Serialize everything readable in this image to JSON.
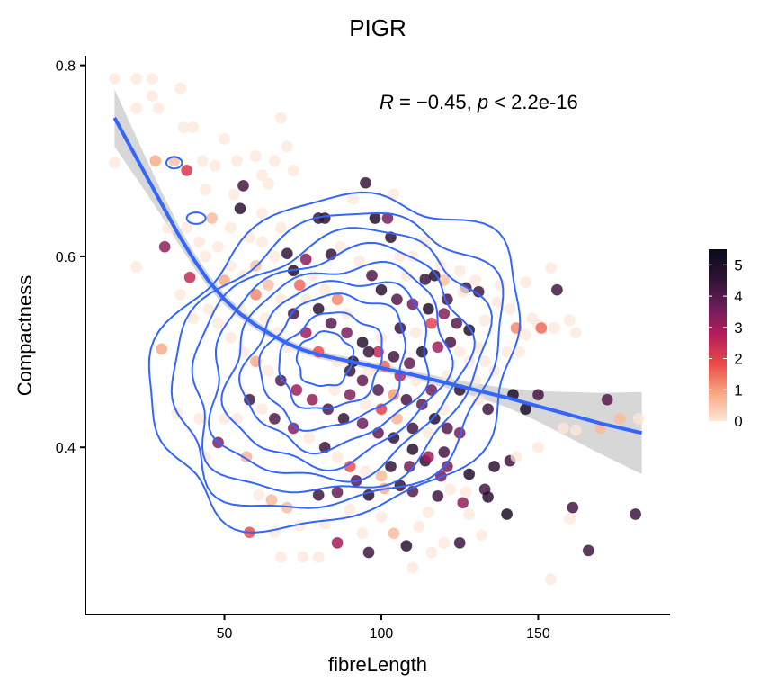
{
  "chart_data": {
    "type": "scatter",
    "title": "PIGR",
    "xlabel": "fibreLength",
    "ylabel": "Compactness",
    "xlim": [
      6,
      192
    ],
    "ylim": [
      0.225,
      0.81
    ],
    "x_ticks": [
      50,
      100,
      150
    ],
    "y_ticks": [
      0.4,
      0.6,
      0.8
    ],
    "x_tick_labels": [
      "50",
      "100",
      "150"
    ],
    "y_tick_labels": [
      "0.4",
      "0.6",
      "0.8"
    ],
    "grid": false,
    "annotation": {
      "text_R": "R",
      "text_eq": " = −0.45, ",
      "text_p": "p",
      "text_rest": " < 2.2e-16"
    },
    "colorbar": {
      "placement": "right",
      "min": 0,
      "max": 5.5,
      "ticks": [
        0,
        1,
        2,
        3,
        4,
        5
      ],
      "tick_labels": [
        "0",
        "1",
        "2",
        "3",
        "4",
        "5"
      ],
      "colors": [
        "#fde7d9",
        "#f7a57e",
        "#ea4a4a",
        "#b41f5b",
        "#6a1d5a",
        "#2c1433",
        "#0a0a1a"
      ]
    },
    "smooth": {
      "color": "#3366ff",
      "band_color": "#d3d3d3",
      "x": [
        15,
        20,
        25,
        30,
        35,
        40,
        45,
        50,
        55,
        60,
        65,
        70,
        75,
        80,
        90,
        100,
        110,
        120,
        130,
        140,
        150,
        160,
        170,
        183
      ],
      "y": [
        0.745,
        0.715,
        0.685,
        0.655,
        0.625,
        0.598,
        0.574,
        0.555,
        0.54,
        0.528,
        0.518,
        0.509,
        0.502,
        0.497,
        0.49,
        0.483,
        0.476,
        0.468,
        0.46,
        0.452,
        0.443,
        0.434,
        0.425,
        0.415
      ],
      "band_halfwidth": [
        0.03,
        0.024,
        0.018,
        0.013,
        0.01,
        0.008,
        0.007,
        0.006,
        0.005,
        0.005,
        0.004,
        0.004,
        0.004,
        0.004,
        0.004,
        0.004,
        0.004,
        0.005,
        0.007,
        0.01,
        0.016,
        0.024,
        0.032,
        0.043
      ]
    },
    "contours": {
      "color": "#3366ff",
      "levels": [
        {
          "cx": 82,
          "cy": 0.492,
          "rx": 9,
          "ry": 0.028
        },
        {
          "cx": 84,
          "cy": 0.49,
          "rx": 17,
          "ry": 0.048
        },
        {
          "cx": 85,
          "cy": 0.49,
          "rx": 24,
          "ry": 0.066
        },
        {
          "cx": 86,
          "cy": 0.488,
          "rx": 31,
          "ry": 0.082
        },
        {
          "cx": 86,
          "cy": 0.487,
          "rx": 37,
          "ry": 0.097
        },
        {
          "cx": 86,
          "cy": 0.487,
          "rx": 43,
          "ry": 0.112
        },
        {
          "cx": 86,
          "cy": 0.487,
          "rx": 49,
          "ry": 0.127
        },
        {
          "cx": 86,
          "cy": 0.488,
          "rx": 55,
          "ry": 0.143
        },
        {
          "cx": 86,
          "cy": 0.49,
          "rx": 62,
          "ry": 0.16
        }
      ],
      "tilt": -0.55,
      "small_loops": [
        {
          "cx": 34,
          "cy": 0.698,
          "rx": 2.5,
          "ry": 0.006
        },
        {
          "cx": 41,
          "cy": 0.64,
          "rx": 3,
          "ry": 0.006
        }
      ]
    },
    "points": [
      [
        15,
        0.786,
        0
      ],
      [
        22,
        0.786,
        0
      ],
      [
        27,
        0.786,
        0
      ],
      [
        15,
        0.698,
        0
      ],
      [
        22,
        0.755,
        0
      ],
      [
        27,
        0.768,
        0
      ],
      [
        29,
        0.755,
        0
      ],
      [
        36,
        0.776,
        0
      ],
      [
        37,
        0.735,
        0
      ],
      [
        40,
        0.735,
        0
      ],
      [
        22,
        0.589,
        0
      ],
      [
        28,
        0.7,
        0.8
      ],
      [
        34,
        0.7,
        0.5
      ],
      [
        38,
        0.69,
        2.2
      ],
      [
        43,
        0.7,
        0
      ],
      [
        50,
        0.723,
        0
      ],
      [
        47,
        0.695,
        0
      ],
      [
        54,
        0.7,
        0
      ],
      [
        53,
        0.665,
        0
      ],
      [
        60,
        0.705,
        0
      ],
      [
        62,
        0.685,
        0
      ],
      [
        66,
        0.7,
        0
      ],
      [
        68,
        0.745,
        0
      ],
      [
        70,
        0.715,
        0
      ],
      [
        72,
        0.69,
        0
      ],
      [
        56,
        0.674,
        4.2
      ],
      [
        55,
        0.65,
        4.6
      ],
      [
        64,
        0.676,
        0
      ],
      [
        44,
        0.67,
        0
      ],
      [
        38,
        0.63,
        0
      ],
      [
        32,
        0.63,
        0
      ],
      [
        31,
        0.61,
        3.2
      ],
      [
        44,
        0.6,
        0
      ],
      [
        48,
        0.61,
        0
      ],
      [
        50,
        0.575,
        0.8
      ],
      [
        39,
        0.578,
        2.5
      ],
      [
        36,
        0.56,
        0
      ],
      [
        40,
        0.535,
        0
      ],
      [
        30,
        0.503,
        0.8
      ],
      [
        35,
        0.436,
        0
      ],
      [
        42,
        0.43,
        0
      ],
      [
        50,
        0.43,
        0
      ],
      [
        54,
        0.43,
        0
      ],
      [
        44,
        0.39,
        0
      ],
      [
        48,
        0.405,
        3.3
      ],
      [
        57,
        0.39,
        0.7
      ],
      [
        61,
        0.35,
        0
      ],
      [
        65,
        0.345,
        0.6
      ],
      [
        70,
        0.337,
        0.6
      ],
      [
        58,
        0.311,
        1.8
      ],
      [
        66,
        0.311,
        0
      ],
      [
        74,
        0.318,
        0
      ],
      [
        75,
        0.285,
        0
      ],
      [
        68,
        0.285,
        0
      ],
      [
        80,
        0.285,
        0
      ],
      [
        82,
        0.32,
        0
      ],
      [
        86,
        0.3,
        3
      ],
      [
        90,
        0.335,
        0
      ],
      [
        94,
        0.31,
        0
      ],
      [
        96,
        0.29,
        4.3
      ],
      [
        100,
        0.327,
        0
      ],
      [
        104,
        0.31,
        0.6
      ],
      [
        108,
        0.297,
        4.6
      ],
      [
        112,
        0.317,
        0
      ],
      [
        115,
        0.332,
        0
      ],
      [
        110,
        0.274,
        0
      ],
      [
        116,
        0.29,
        0
      ],
      [
        120,
        0.3,
        0
      ],
      [
        125,
        0.3,
        4.3
      ],
      [
        132,
        0.308,
        0
      ],
      [
        140,
        0.33,
        5
      ],
      [
        154,
        0.262,
        0
      ],
      [
        161,
        0.337,
        4.2
      ],
      [
        160,
        0.325,
        0
      ],
      [
        166,
        0.292,
        4.3
      ],
      [
        181,
        0.33,
        4.3
      ],
      [
        133,
        0.356,
        4.2
      ],
      [
        134,
        0.348,
        4.6
      ],
      [
        128,
        0.33,
        0
      ],
      [
        126,
        0.342,
        3.2
      ],
      [
        127,
        0.353,
        0
      ],
      [
        118,
        0.349,
        4.3
      ],
      [
        122,
        0.356,
        0
      ],
      [
        119,
        0.37,
        3.5
      ],
      [
        110,
        0.354,
        4
      ],
      [
        106,
        0.36,
        4.5
      ],
      [
        101,
        0.357,
        0.8
      ],
      [
        96,
        0.35,
        4.7
      ],
      [
        92,
        0.365,
        4
      ],
      [
        86,
        0.353,
        3.8
      ],
      [
        80,
        0.35,
        4.3
      ],
      [
        103,
        0.38,
        4.5
      ],
      [
        109,
        0.38,
        3.6
      ],
      [
        114,
        0.386,
        4.6
      ],
      [
        121,
        0.38,
        3.5
      ],
      [
        128,
        0.372,
        4.8
      ],
      [
        136,
        0.38,
        4.6
      ],
      [
        141,
        0.386,
        4.3
      ],
      [
        143,
        0.39,
        0
      ],
      [
        150,
        0.4,
        0
      ],
      [
        158,
        0.42,
        0
      ],
      [
        162,
        0.418,
        0
      ],
      [
        170,
        0.42,
        0.6
      ],
      [
        176,
        0.43,
        0.6
      ],
      [
        182,
        0.43,
        0
      ],
      [
        172,
        0.45,
        4
      ],
      [
        146,
        0.44,
        5
      ],
      [
        142,
        0.455,
        5
      ],
      [
        131,
        0.45,
        0
      ],
      [
        134,
        0.44,
        4.3
      ],
      [
        150,
        0.455,
        4.2
      ],
      [
        133,
        0.49,
        0
      ],
      [
        140,
        0.5,
        0
      ],
      [
        144,
        0.5,
        0
      ],
      [
        146,
        0.518,
        0
      ],
      [
        150,
        0.528,
        0
      ],
      [
        151,
        0.525,
        1.5
      ],
      [
        155,
        0.525,
        0
      ],
      [
        160,
        0.533,
        0
      ],
      [
        162,
        0.52,
        0
      ],
      [
        148,
        0.535,
        0
      ],
      [
        143,
        0.525,
        1.2
      ],
      [
        133,
        0.533,
        0
      ],
      [
        138,
        0.57,
        0
      ],
      [
        146,
        0.573,
        0
      ],
      [
        154,
        0.588,
        0
      ],
      [
        156,
        0.565,
        4.2
      ],
      [
        131,
        0.563,
        4.3
      ],
      [
        127,
        0.567,
        4.3
      ],
      [
        120,
        0.575,
        0.5
      ],
      [
        117,
        0.58,
        4.7
      ],
      [
        114,
        0.576,
        4.4
      ],
      [
        108,
        0.58,
        0
      ],
      [
        106,
        0.6,
        0
      ],
      [
        103,
        0.62,
        4.6
      ],
      [
        98,
        0.64,
        4.8
      ],
      [
        95,
        0.677,
        4.4
      ],
      [
        104,
        0.665,
        0
      ],
      [
        91,
        0.66,
        0
      ],
      [
        82,
        0.64,
        4.6
      ],
      [
        80,
        0.64,
        4.5
      ],
      [
        84,
        0.602,
        4.4
      ],
      [
        87,
        0.61,
        0
      ],
      [
        93,
        0.595,
        0
      ],
      [
        97,
        0.58,
        4
      ],
      [
        100,
        0.565,
        4.6
      ],
      [
        105,
        0.555,
        4
      ],
      [
        110,
        0.55,
        3.5
      ],
      [
        115,
        0.545,
        4.8
      ],
      [
        120,
        0.54,
        3.4
      ],
      [
        124,
        0.53,
        4
      ],
      [
        128,
        0.523,
        4.8
      ],
      [
        122,
        0.51,
        4.2
      ],
      [
        118,
        0.505,
        3
      ],
      [
        113,
        0.5,
        4.8
      ],
      [
        109,
        0.488,
        3.8
      ],
      [
        104,
        0.495,
        4.2
      ],
      [
        99,
        0.5,
        2.5
      ],
      [
        94,
        0.51,
        4.7
      ],
      [
        89,
        0.52,
        3.5
      ],
      [
        84,
        0.53,
        4
      ],
      [
        80,
        0.545,
        4.6
      ],
      [
        76,
        0.555,
        0
      ],
      [
        74,
        0.57,
        1.5
      ],
      [
        72,
        0.585,
        4.8
      ],
      [
        76,
        0.597,
        3.3
      ],
      [
        70,
        0.603,
        4.5
      ],
      [
        66,
        0.6,
        0
      ],
      [
        62,
        0.615,
        0
      ],
      [
        60,
        0.59,
        0.5
      ],
      [
        64,
        0.57,
        0.5
      ],
      [
        68,
        0.555,
        0
      ],
      [
        72,
        0.54,
        4.2
      ],
      [
        76,
        0.52,
        3
      ],
      [
        80,
        0.5,
        1.8
      ],
      [
        86,
        0.49,
        0
      ],
      [
        90,
        0.48,
        4.5
      ],
      [
        94,
        0.47,
        3.8
      ],
      [
        99,
        0.46,
        4
      ],
      [
        104,
        0.455,
        1
      ],
      [
        108,
        0.45,
        4.2
      ],
      [
        113,
        0.445,
        3.8
      ],
      [
        117,
        0.43,
        4.8
      ],
      [
        121,
        0.42,
        4
      ],
      [
        125,
        0.415,
        3.5
      ],
      [
        120,
        0.395,
        4.2
      ],
      [
        115,
        0.39,
        3
      ],
      [
        110,
        0.398,
        4.7
      ],
      [
        104,
        0.41,
        4.6
      ],
      [
        99,
        0.415,
        3.9
      ],
      [
        94,
        0.425,
        3.6
      ],
      [
        88,
        0.43,
        4.5
      ],
      [
        83,
        0.44,
        4.1
      ],
      [
        78,
        0.45,
        3.2
      ],
      [
        73,
        0.46,
        3
      ],
      [
        68,
        0.47,
        4
      ],
      [
        64,
        0.48,
        0
      ],
      [
        60,
        0.49,
        0.8
      ],
      [
        56,
        0.5,
        0
      ],
      [
        52,
        0.515,
        0
      ],
      [
        48,
        0.53,
        0
      ],
      [
        45,
        0.545,
        0
      ],
      [
        55,
        0.545,
        0
      ],
      [
        60,
        0.56,
        1.2
      ],
      [
        63,
        0.535,
        0
      ],
      [
        67,
        0.52,
        0
      ],
      [
        70,
        0.505,
        0
      ],
      [
        66,
        0.43,
        4
      ],
      [
        62,
        0.44,
        0
      ],
      [
        58,
        0.45,
        4.2
      ],
      [
        72,
        0.42,
        3.3
      ],
      [
        77,
        0.41,
        0
      ],
      [
        82,
        0.4,
        4.3
      ],
      [
        86,
        0.39,
        0
      ],
      [
        90,
        0.38,
        1.8
      ],
      [
        95,
        0.375,
        0
      ],
      [
        100,
        0.37,
        0.6
      ],
      [
        85,
        0.46,
        0
      ],
      [
        90,
        0.455,
        3.4
      ],
      [
        95,
        0.445,
        0
      ],
      [
        100,
        0.44,
        2
      ],
      [
        105,
        0.43,
        0.7
      ],
      [
        110,
        0.42,
        4.3
      ],
      [
        115,
        0.415,
        0
      ],
      [
        120,
        0.44,
        0
      ],
      [
        125,
        0.46,
        4.5
      ],
      [
        130,
        0.47,
        0
      ],
      [
        96,
        0.48,
        0
      ],
      [
        91,
        0.49,
        4.6
      ],
      [
        100,
        0.515,
        0
      ],
      [
        106,
        0.525,
        4.4
      ],
      [
        111,
        0.52,
        0
      ],
      [
        116,
        0.53,
        2
      ],
      [
        121,
        0.555,
        4.2
      ],
      [
        126,
        0.563,
        0
      ],
      [
        131,
        0.505,
        0
      ],
      [
        136,
        0.48,
        0
      ],
      [
        128,
        0.49,
        0
      ],
      [
        125,
        0.5,
        0
      ],
      [
        121,
        0.475,
        0
      ],
      [
        116,
        0.46,
        3.6
      ],
      [
        111,
        0.47,
        0
      ],
      [
        106,
        0.475,
        2.6
      ],
      [
        101,
        0.485,
        1.5
      ],
      [
        96,
        0.5,
        4.4
      ],
      [
        89,
        0.54,
        0
      ],
      [
        86,
        0.555,
        1.2
      ],
      [
        82,
        0.565,
        0
      ],
      [
        78,
        0.58,
        0
      ],
      [
        68,
        0.63,
        0
      ],
      [
        62,
        0.645,
        0
      ],
      [
        58,
        0.62,
        0
      ],
      [
        52,
        0.63,
        0
      ],
      [
        46,
        0.64,
        0.6
      ],
      [
        42,
        0.615,
        0
      ],
      [
        52,
        0.59,
        0
      ],
      [
        56,
        0.58,
        0
      ],
      [
        102,
        0.64,
        3.5
      ],
      [
        110,
        0.6,
        0
      ],
      [
        114,
        0.615,
        0
      ],
      [
        119,
        0.59,
        0
      ],
      [
        125,
        0.585,
        0
      ],
      [
        130,
        0.575,
        0
      ],
      [
        137,
        0.552,
        0
      ],
      [
        141,
        0.545,
        0
      ]
    ]
  }
}
